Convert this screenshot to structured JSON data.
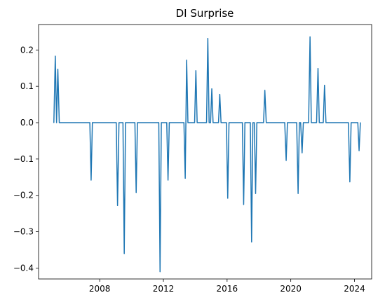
{
  "chart_data": {
    "type": "line",
    "title": "DI Surprise",
    "xlabel": "",
    "ylabel": "",
    "grid": false,
    "legend": "none",
    "xlim": [
      2004.16,
      2025.08
    ],
    "ylim": [
      -0.43,
      0.27
    ],
    "x_ticks": [
      {
        "value": 2008,
        "label": "2008"
      },
      {
        "value": 2012,
        "label": "2012"
      },
      {
        "value": 2016,
        "label": "2016"
      },
      {
        "value": 2020,
        "label": "2020"
      },
      {
        "value": 2024,
        "label": "2024"
      }
    ],
    "y_ticks": [
      {
        "value": 0.2,
        "label": "0.2"
      },
      {
        "value": 0.1,
        "label": "0.1"
      },
      {
        "value": 0.0,
        "label": "0.0"
      },
      {
        "value": -0.1,
        "label": "−0.1"
      },
      {
        "value": -0.2,
        "label": "−0.2"
      },
      {
        "value": -0.3,
        "label": "−0.3"
      },
      {
        "value": -0.4,
        "label": "−0.4"
      }
    ],
    "series": [
      {
        "color": "#1f77b4",
        "points": [
          {
            "x": 2005.12,
            "y": 0.0
          },
          {
            "x": 2005.21,
            "y": 0.183
          },
          {
            "x": 2005.29,
            "y": 0.0
          },
          {
            "x": 2005.37,
            "y": 0.147
          },
          {
            "x": 2005.46,
            "y": 0.0
          },
          {
            "x": 2007.38,
            "y": 0.0
          },
          {
            "x": 2007.46,
            "y": -0.158
          },
          {
            "x": 2007.54,
            "y": 0.0
          },
          {
            "x": 2009.04,
            "y": 0.0
          },
          {
            "x": 2009.12,
            "y": -0.228
          },
          {
            "x": 2009.21,
            "y": 0.0
          },
          {
            "x": 2009.46,
            "y": 0.0
          },
          {
            "x": 2009.54,
            "y": -0.36
          },
          {
            "x": 2009.62,
            "y": 0.0
          },
          {
            "x": 2010.21,
            "y": 0.0
          },
          {
            "x": 2010.29,
            "y": -0.192
          },
          {
            "x": 2010.37,
            "y": 0.0
          },
          {
            "x": 2011.71,
            "y": 0.0
          },
          {
            "x": 2011.79,
            "y": -0.41
          },
          {
            "x": 2011.87,
            "y": 0.0
          },
          {
            "x": 2012.21,
            "y": 0.0
          },
          {
            "x": 2012.29,
            "y": -0.158
          },
          {
            "x": 2012.37,
            "y": 0.0
          },
          {
            "x": 2013.29,
            "y": 0.0
          },
          {
            "x": 2013.37,
            "y": -0.153
          },
          {
            "x": 2013.46,
            "y": 0.172
          },
          {
            "x": 2013.54,
            "y": 0.0
          },
          {
            "x": 2013.96,
            "y": 0.0
          },
          {
            "x": 2014.04,
            "y": 0.143
          },
          {
            "x": 2014.12,
            "y": 0.0
          },
          {
            "x": 2014.71,
            "y": 0.0
          },
          {
            "x": 2014.79,
            "y": 0.232
          },
          {
            "x": 2014.87,
            "y": 0.0
          },
          {
            "x": 2014.96,
            "y": 0.0
          },
          {
            "x": 2015.04,
            "y": 0.093
          },
          {
            "x": 2015.12,
            "y": 0.0
          },
          {
            "x": 2015.46,
            "y": 0.0
          },
          {
            "x": 2015.54,
            "y": 0.078
          },
          {
            "x": 2015.62,
            "y": 0.0
          },
          {
            "x": 2015.96,
            "y": 0.0
          },
          {
            "x": 2016.04,
            "y": -0.208
          },
          {
            "x": 2016.12,
            "y": 0.0
          },
          {
            "x": 2016.96,
            "y": 0.0
          },
          {
            "x": 2017.04,
            "y": -0.225
          },
          {
            "x": 2017.12,
            "y": 0.0
          },
          {
            "x": 2017.46,
            "y": 0.0
          },
          {
            "x": 2017.54,
            "y": -0.328
          },
          {
            "x": 2017.62,
            "y": 0.0
          },
          {
            "x": 2017.71,
            "y": 0.0
          },
          {
            "x": 2017.79,
            "y": -0.195
          },
          {
            "x": 2017.87,
            "y": 0.0
          },
          {
            "x": 2018.29,
            "y": 0.0
          },
          {
            "x": 2018.37,
            "y": 0.089
          },
          {
            "x": 2018.46,
            "y": 0.0
          },
          {
            "x": 2019.62,
            "y": 0.0
          },
          {
            "x": 2019.71,
            "y": -0.104
          },
          {
            "x": 2019.79,
            "y": 0.0
          },
          {
            "x": 2020.37,
            "y": 0.0
          },
          {
            "x": 2020.46,
            "y": -0.195
          },
          {
            "x": 2020.54,
            "y": 0.0
          },
          {
            "x": 2020.62,
            "y": 0.0
          },
          {
            "x": 2020.71,
            "y": -0.083
          },
          {
            "x": 2020.79,
            "y": 0.0
          },
          {
            "x": 2021.12,
            "y": 0.0
          },
          {
            "x": 2021.21,
            "y": 0.236
          },
          {
            "x": 2021.29,
            "y": 0.0
          },
          {
            "x": 2021.62,
            "y": 0.0
          },
          {
            "x": 2021.71,
            "y": 0.149
          },
          {
            "x": 2021.79,
            "y": 0.0
          },
          {
            "x": 2022.04,
            "y": 0.0
          },
          {
            "x": 2022.12,
            "y": 0.103
          },
          {
            "x": 2022.21,
            "y": 0.0
          },
          {
            "x": 2023.62,
            "y": 0.0
          },
          {
            "x": 2023.71,
            "y": -0.163
          },
          {
            "x": 2023.79,
            "y": 0.0
          },
          {
            "x": 2024.21,
            "y": 0.0
          },
          {
            "x": 2024.29,
            "y": -0.077
          },
          {
            "x": 2024.37,
            "y": 0.0
          }
        ]
      }
    ]
  }
}
